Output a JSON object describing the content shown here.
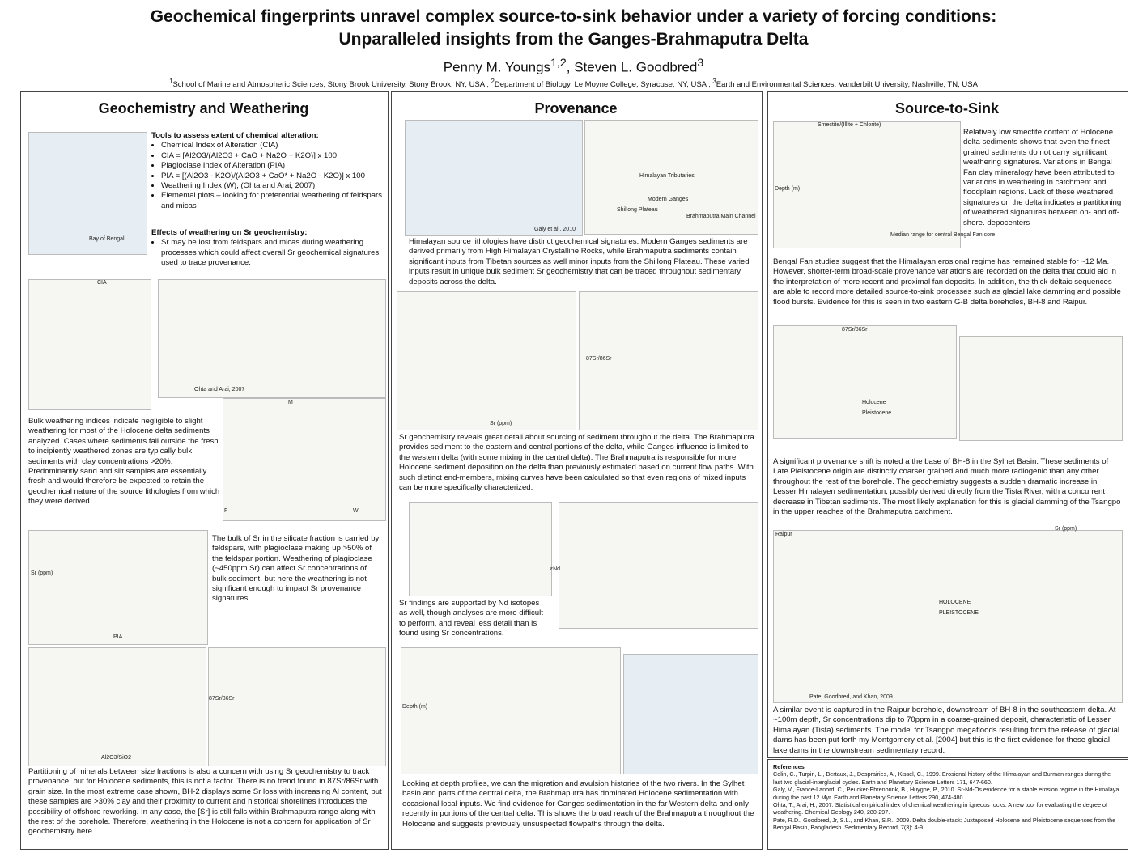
{
  "header": {
    "title": [
      "Geochemical fingerprints unravel complex source-to-sink behavior under a variety of forcing conditions:",
      "Unparalleled insights from the Ganges-Brahmaputra Delta"
    ],
    "authors": [
      {
        "name": "Penny M. Youngs",
        "sup": "1,2"
      },
      {
        "name": "Steven L. Goodbred",
        "sup": "3"
      }
    ],
    "affiliations": [
      {
        "sup": "1",
        "text": "School of Marine and Atmospheric Sciences, Stony Brook University, Stony Brook, NY, USA ;"
      },
      {
        "sup": "2",
        "text": "Department of Biology, Le Moyne College, Syracuse, NY, USA ;"
      },
      {
        "sup": "3",
        "text": "Earth and Environmental Sciences, Vanderbilt University, Nashville, TN, USA"
      }
    ]
  },
  "columns": [
    {
      "heading": "Geochemistry and Weathering",
      "tools": {
        "heading": "Tools to assess extent of chemical alteration:",
        "items": [
          "Chemical Index of Alteration (CIA)",
          "CIA = [Al2O3/(Al2O3 + CaO + Na2O + K2O)] x 100",
          "Plagioclase Index of Alteration (PIA)",
          "PIA = [(Al2O3 - K2O)/(Al2O3 + CaO* + Na2O - K2O)] x 100",
          "Weathering Index (W), (Ohta and Arai, 2007)",
          "Elemental plots – looking for preferential weathering of feldspars and micas"
        ]
      },
      "effects": {
        "heading": "Effects of weathering on Sr geochemistry:",
        "items": [
          "Sr may be lost from feldspars and micas during weathering processes which could affect overall Sr geochemical signatures used to trace provenance."
        ]
      },
      "paragraphs": [
        "Bulk weathering indices indicate negligible to slight weathering for most of the Holocene delta sediments analyzed. Cases where sediments fall outside the fresh to incipiently weathered zones are typically bulk sediments with clay concentrations >20%. Predominantly sand and silt samples are essentially fresh and would therefore be expected to retain the geochemical nature of the source lithologies from which they were derived.",
        "The bulk of Sr in the silicate fraction is carried by feldspars, with plagioclase making up >50% of the feldspar portion. Weathering of plagioclase (~450ppm Sr) can affect Sr concentrations of bulk sediment, but here the weathering is not significant enough to impact Sr provenance signatures.",
        "Partitioning of minerals between size fractions is also a concern with using Sr geochemistry to track provenance, but for Holocene sediments, this is not a factor. There is no trend found in 87Sr/86Sr with grain size. In the most extreme case shown, BH-2 displays some Sr loss with increasing Al content, but these samples are >30% clay and their proximity to current and historical shorelines introduces the possibility of offshore reworking. In any case, the [Sr] is still falls within Brahmaputra range along with the rest of the borehole. Therefore, weathering in the Holocene is not a concern for application of Sr geochemistry here."
      ],
      "figure_labels": [
        "Bay of Bengal",
        "CIA",
        "Ohta and Arai, 2007",
        "M",
        "F",
        "W",
        "PIA",
        "Sr (ppm)",
        "Al2O3/SiO2",
        "87Sr/86Sr"
      ]
    },
    {
      "heading": "Provenance",
      "paragraphs": [
        "Himalayan source lithologies have distinct geochemical signatures. Modern Ganges sediments are derived primarily from High Himalayan Crystalline Rocks, while Brahmaputra sediments contain significant inputs from Tibetan sources as well minor inputs from the Shillong Plateau. These varied inputs result in unique bulk sediment Sr geochemistry that can be traced throughout sedimentary deposits across the delta.",
        "Sr geochemistry reveals great detail about sourcing of sediment throughout the delta. The Brahmaputra provides sediment to the eastern and central portions of the delta, while Ganges influence is limited to the western delta (with some mixing in the central delta). The Brahmaputra is responsible for more Holocene sediment deposition on the delta than previously estimated based on current flow paths. With such distinct end-members, mixing curves have been calculated so that even regions of mixed inputs can be more specifically characterized.",
        "Sr findings are supported by Nd isotopes as well, though analyses are more difficult to perform, and reveal less detail than is found using Sr concentrations.",
        "Looking at depth profiles, we can the migration and avulsion histories of the two rivers. In the Sylhet basin and parts of the central delta, the Brahmaputra has dominated Holocene sedimentation with occasional local inputs. We find evidence for Ganges sedimentation in the far Western delta and only recently in portions of the central delta. This shows the broad reach of the Brahmaputra throughout the Holocene and suggests previously unsuspected flowpaths through the delta."
      ],
      "figure_labels": [
        "Galy et al., 2010",
        "Himalayan Tributaries",
        "Modern Ganges",
        "Brahmaputra Main Channel",
        "Shillong Plateau",
        "Sr (ppm)",
        "87Sr/86Sr",
        "εNd",
        "Depth (m)"
      ]
    },
    {
      "heading": "Source-to-Sink",
      "paragraphs": [
        "Relatively low smectite content of Holocene delta sediments shows that even the finest grained sediments do not carry significant weathering signatures. Variations in Bengal Fan clay mineralogy have been attributed to variations in weathering in catchment and floodplain regions. Lack of these weathered signatures on the delta indicates a partitioning of weathered signatures between on- and off-shore. depocenters",
        "Bengal Fan studies suggest that the Himalayan erosional regime has remained stable for ~12 Ma. However, shorter-term broad-scale provenance variations are recorded on the delta that could aid in the interpretation of more recent and proximal fan deposits. In addition, the thick deltaic sequences are able to record more detailed source-to-sink processes such as glacial lake damming and possible flood bursts. Evidence for this is seen in two eastern G-B delta boreholes, BH-8 and Raipur.",
        "A significant provenance shift is noted a the base of BH-8 in the Sylhet Basin. These sediments of Late Pleistocene origin are distinctly coarser grained and much more radiogenic than any other throughout the rest of the borehole. The geochemistry suggests a sudden dramatic increase in Lesser Himalayen sedimentation, possibly derived directly from the Tista River, with a concurrent decrease in Tibetan sediments. The most likely explanation for this is glacial damming of the Tsangpo in the upper reaches of the Brahmaputra catchment.",
        "A similar event is captured in the Raipur borehole, downstream of BH-8 in the southeastern delta. At ~100m depth, Sr concentrations dip to 70ppm in a coarse-grained deposit, characteristic of Lesser Himalayan (Tista) sediments. The model for Tsangpo megafloods resulting from the release of glacial dams has been put forth my Montgomery et al. [2004] but this is the first evidence for these glacial lake dams in the downstream sedimentary record."
      ],
      "figure_labels": [
        "Smectite/(Illite + Chlorite)",
        "Depth (m)",
        "Median range for central Bengal Fan core",
        "Holocene",
        "Pleistocene",
        "87Sr/86Sr",
        "Raipur",
        "HOLOCENE",
        "PLEISTOCENE",
        "Sr (ppm)",
        "Pate, Goodbred, and Khan, 2009"
      ],
      "references": {
        "heading": "References",
        "items": [
          "Colin, C., Turpin, L., Bertaux, J., Desprairies, A., Kissel, C., 1999. Erosional history of the Himalayan and Burman ranges during the last two glacial-interglacial cycles. Earth and Planetary Science Letters 171, 647-660.",
          "Galy, V., France-Lanord, C., Peucker-Ehrenbrink, B., Huyghe, P., 2010. Sr-Nd-Os evidence for a stable erosion regime in the Himalaya during the past 12 Myr. Earth and Planetary Science Letters 290, 474-480.",
          "Ohta, T., Arai, H., 2007. Statistical empirical index of chemical weathering in igneous rocks: A new tool for evaluating the degree of weathering. Chemical Geology 240, 280-297.",
          "Pate, R.D., Goodbred, Jr, S.L., and Khan, S.R., 2009. Delta double-stack: Juxtaposed Holocene and Pleistocene sequences from the Bengal Basin, Bangladesh. Sedimentary Record, 7(3): 4-9."
        ]
      }
    }
  ]
}
